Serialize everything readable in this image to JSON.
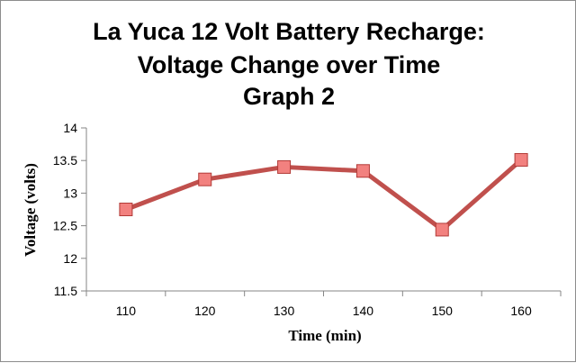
{
  "chart_data": {
    "type": "line",
    "title_lines": [
      "La Yuca 12 Volt Battery Recharge:",
      "Voltage Change over Time",
      "Graph 2"
    ],
    "xlabel": "Time (min)",
    "ylabel": "Voltage (volts)",
    "categories": [
      "110",
      "120",
      "130",
      "140",
      "150",
      "160"
    ],
    "y_ticks": [
      "11.5",
      "12",
      "12.5",
      "13",
      "13.5",
      "14"
    ],
    "ylim": [
      11.5,
      14
    ],
    "grid": false,
    "legend": "none",
    "series": [
      {
        "values": [
          12.75,
          13.21,
          13.4,
          13.34,
          12.44,
          13.51
        ]
      }
    ],
    "colors": {
      "line": "#c0504d",
      "marker_fill": "#f2817f",
      "marker_stroke": "#b23a37",
      "axis": "#868686"
    }
  }
}
